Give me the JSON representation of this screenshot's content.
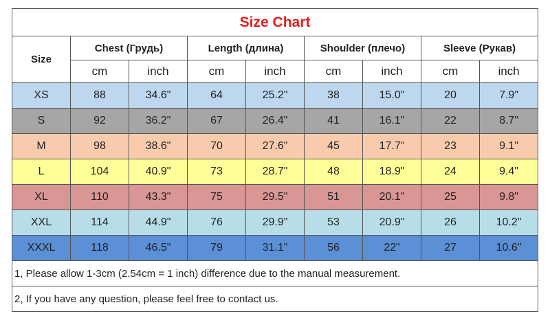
{
  "title": "Size Chart",
  "size_header": "Size",
  "groups": [
    {
      "name": "Chest  (Грудь)",
      "units": [
        "cm",
        "inch"
      ]
    },
    {
      "name": "Length (длина)",
      "units": [
        "cm",
        "inch"
      ]
    },
    {
      "name": "Shoulder (плечо)",
      "units": [
        "cm",
        "inch"
      ]
    },
    {
      "name": "Sleeve (Рукав)",
      "units": [
        "cm",
        "inch"
      ]
    }
  ],
  "rows": [
    {
      "size": "XS",
      "cells": [
        "88",
        "34.6\"",
        "64",
        "25.2\"",
        "38",
        "15.0\"",
        "20",
        "7.9\""
      ]
    },
    {
      "size": "S",
      "cells": [
        "92",
        "36.2\"",
        "67",
        "26.4\"",
        "41",
        "16.1\"",
        "22",
        "8.7\""
      ]
    },
    {
      "size": "M",
      "cells": [
        "98",
        "38.6\"",
        "70",
        "27.6\"",
        "45",
        "17.7\"",
        "23",
        "9.1\""
      ]
    },
    {
      "size": "L",
      "cells": [
        "104",
        "40.9\"",
        "73",
        "28.7\"",
        "48",
        "18.9\"",
        "24",
        "9.4\""
      ]
    },
    {
      "size": "XL",
      "cells": [
        "110",
        "43.3\"",
        "75",
        "29.5\"",
        "51",
        "20.1\"",
        "25",
        "9.8\""
      ]
    },
    {
      "size": "XXL",
      "cells": [
        "114",
        "44.9\"",
        "76",
        "29.9\"",
        "53",
        "20.9\"",
        "26",
        "10.2\""
      ]
    },
    {
      "size": "XXXL",
      "cells": [
        "118",
        "46.5\"",
        "79",
        "31.1\"",
        "56",
        "22\"",
        "27",
        "10.6\""
      ]
    }
  ],
  "notes": [
    "1, Please allow 1-3cm (2.54cm = 1 inch) difference due to the manual measurement.",
    "2, If you have any question, please feel free to contact us."
  ]
}
